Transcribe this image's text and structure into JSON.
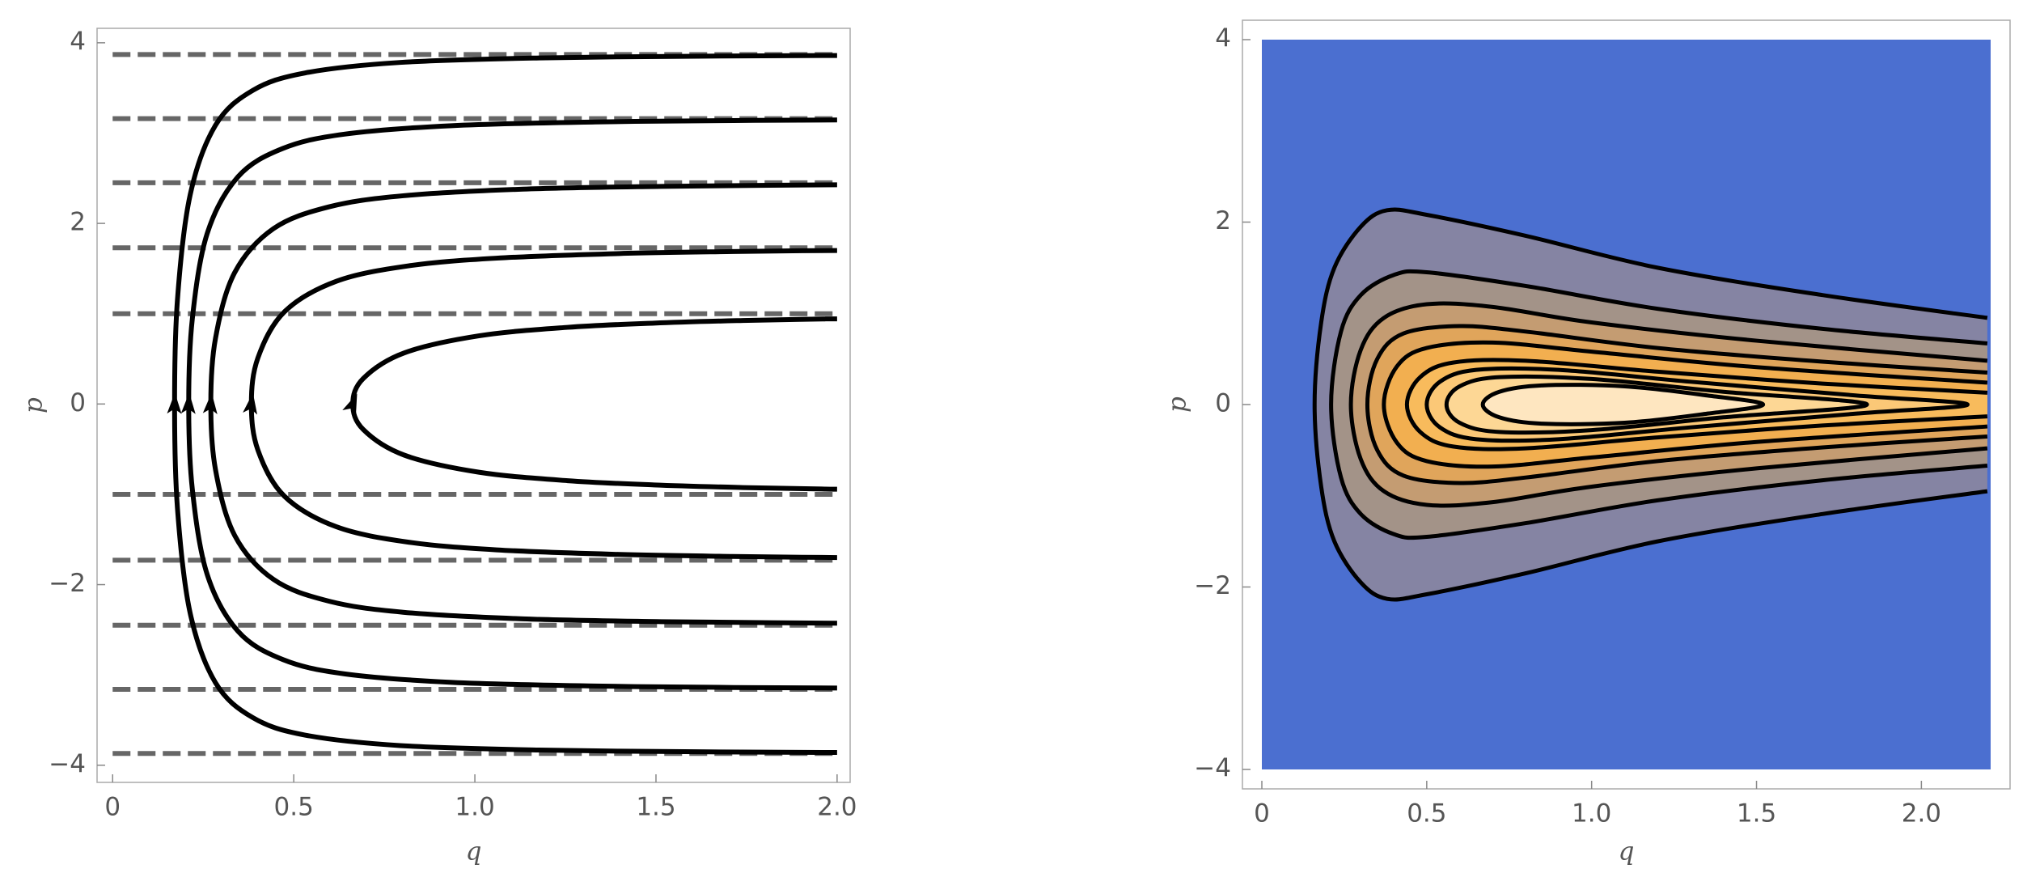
{
  "chart_data": [
    {
      "type": "line",
      "xlabel": "q",
      "ylabel": "p",
      "xlim": [
        -0.043,
        2.036
      ],
      "ylim": [
        -4.19,
        4.16
      ],
      "xticks": [
        0,
        0.5,
        {
          "value": 1,
          "label": "1.0"
        },
        1.5,
        {
          "value": 2,
          "label": "2.0"
        }
      ],
      "yticks": [
        {
          "value": -4,
          "label": "−4"
        },
        {
          "value": -2,
          "label": "−2"
        },
        0,
        2,
        4
      ],
      "asymptotes": {
        "color": "#666666",
        "values": [
          3.87,
          3.16,
          2.45,
          1.73,
          1.0,
          -1.0,
          -1.73,
          -2.45,
          -3.16,
          -3.87
        ]
      },
      "series": [
        {
          "color": "#000000",
          "x": [
            2.0,
            1.968,
            1.896,
            1.74,
            1.495,
            1.256,
            1.011,
            0.805,
            0.692,
            0.663,
            0.692,
            0.805,
            1.011,
            1.256,
            1.495,
            1.74,
            1.896,
            1.968,
            2.0
          ],
          "values": [
            -0.943,
            -0.942,
            -0.937,
            -0.925,
            -0.896,
            -0.849,
            -0.755,
            -0.566,
            -0.283,
            0,
            0.283,
            0.566,
            0.755,
            0.849,
            0.896,
            0.925,
            0.937,
            0.942,
            0.943
          ]
        },
        {
          "color": "#000000",
          "x": [
            2.0,
            1.903,
            1.711,
            1.4,
            1.06,
            0.817,
            0.618,
            0.474,
            0.401,
            0.383,
            0.401,
            0.474,
            0.618,
            0.817,
            1.06,
            1.4,
            1.711,
            1.903,
            2.0
          ],
          "values": [
            -1.7,
            -1.697,
            -1.688,
            -1.666,
            -1.615,
            -1.53,
            -1.36,
            -1.02,
            -0.51,
            0,
            0.51,
            1.02,
            1.36,
            1.53,
            1.615,
            1.666,
            1.688,
            1.697,
            1.7
          ]
        },
        {
          "color": "#000000",
          "x": [
            2.0,
            1.815,
            1.514,
            1.133,
            0.802,
            0.598,
            0.444,
            0.337,
            0.284,
            0.271,
            0.284,
            0.337,
            0.444,
            0.598,
            0.802,
            1.133,
            1.514,
            1.815,
            2.0
          ],
          "values": [
            -2.427,
            -2.422,
            -2.41,
            -2.379,
            -2.306,
            -2.184,
            -1.942,
            -1.456,
            -0.728,
            0,
            0.728,
            1.456,
            1.942,
            2.184,
            2.306,
            2.379,
            2.41,
            2.422,
            2.427
          ]
        },
        {
          "color": "#000000",
          "x": [
            2.0,
            1.714,
            1.332,
            0.936,
            0.64,
            0.47,
            0.346,
            0.261,
            0.22,
            0.21,
            0.22,
            0.261,
            0.346,
            0.47,
            0.64,
            0.936,
            1.332,
            1.714,
            2.0
          ],
          "values": [
            -3.145,
            -3.139,
            -3.123,
            -3.082,
            -2.988,
            -2.83,
            -2.516,
            -1.887,
            -0.943,
            0,
            0.943,
            1.887,
            2.516,
            2.83,
            2.988,
            3.082,
            3.123,
            3.139,
            3.145
          ]
        },
        {
          "color": "#000000",
          "x": [
            2.0,
            1.614,
            1.178,
            0.793,
            0.531,
            0.387,
            0.284,
            0.214,
            0.179,
            0.171,
            0.179,
            0.214,
            0.284,
            0.387,
            0.531,
            0.793,
            1.178,
            1.614,
            2.0
          ],
          "values": [
            -3.859,
            -3.851,
            -3.832,
            -3.782,
            -3.666,
            -3.473,
            -3.087,
            -2.315,
            -1.158,
            0,
            1.158,
            2.315,
            3.087,
            3.473,
            3.666,
            3.782,
            3.832,
            3.851,
            3.859
          ]
        }
      ]
    },
    {
      "type": "contour",
      "xlabel": "q",
      "ylabel": "p",
      "background": "#4b6fd0",
      "line_color": "#000000",
      "xlim": [
        0,
        2.21
      ],
      "ylim": [
        -4,
        4
      ],
      "xticks": [
        0,
        0.5,
        {
          "value": 1,
          "label": "1.0"
        },
        1.5,
        {
          "value": 2,
          "label": "2.0"
        }
      ],
      "yticks": [
        {
          "value": -4,
          "label": "−4"
        },
        {
          "value": -2,
          "label": "−2"
        },
        0,
        2,
        4
      ],
      "series": [
        {
          "color": "#8584a3",
          "closed": false,
          "x": [
            2.2,
            1.7,
            1.2,
            0.8,
            0.5,
            0.38,
            0.3,
            0.22,
            0.18,
            0.16,
            0.18,
            0.22,
            0.3,
            0.38,
            0.5,
            0.8,
            1.2,
            1.7,
            2.2
          ],
          "values": [
            -0.95,
            -1.2,
            -1.5,
            -1.85,
            -2.08,
            -2.13,
            -1.95,
            -1.5,
            -0.9,
            0,
            0.9,
            1.5,
            1.95,
            2.13,
            2.08,
            1.85,
            1.5,
            1.2,
            0.95
          ]
        },
        {
          "color": "#a39388",
          "closed": false,
          "x": [
            2.2,
            1.7,
            1.2,
            0.8,
            0.5,
            0.4,
            0.3,
            0.24,
            0.21,
            0.24,
            0.3,
            0.4,
            0.5,
            0.8,
            1.2,
            1.7,
            2.2
          ],
          "values": [
            -0.67,
            -0.83,
            -1.05,
            -1.3,
            -1.45,
            -1.42,
            -1.2,
            -0.8,
            0,
            0.8,
            1.2,
            1.42,
            1.45,
            1.3,
            1.05,
            0.83,
            0.67
          ]
        },
        {
          "color": "#c49c72",
          "closed": false,
          "x": [
            2.2,
            1.5,
            1.0,
            0.7,
            0.5,
            0.37,
            0.3,
            0.27,
            0.3,
            0.37,
            0.5,
            0.7,
            1.0,
            1.5,
            2.2
          ],
          "values": [
            -0.48,
            -0.7,
            -0.9,
            -1.07,
            -1.1,
            -0.95,
            -0.6,
            0,
            0.6,
            0.95,
            1.1,
            1.07,
            0.9,
            0.7,
            0.48
          ]
        },
        {
          "color": "#e0a55b",
          "closed": false,
          "x": [
            2.2,
            1.7,
            1.2,
            0.8,
            0.6,
            0.43,
            0.35,
            0.32,
            0.35,
            0.43,
            0.6,
            0.8,
            1.2,
            1.7,
            2.2
          ],
          "values": [
            -0.35,
            -0.47,
            -0.62,
            -0.8,
            -0.86,
            -0.78,
            -0.5,
            0,
            0.5,
            0.78,
            0.86,
            0.8,
            0.62,
            0.47,
            0.35
          ]
        },
        {
          "color": "#f2af50",
          "closed": false,
          "x": [
            2.2,
            1.5,
            1.0,
            0.7,
            0.5,
            0.41,
            0.37,
            0.41,
            0.5,
            0.7,
            1.0,
            1.5,
            2.2
          ],
          "values": [
            -0.24,
            -0.41,
            -0.58,
            -0.68,
            -0.62,
            -0.42,
            0,
            0.42,
            0.62,
            0.68,
            0.58,
            0.41,
            0.24
          ]
        },
        {
          "color": "#f8bb5c",
          "closed": false,
          "x": [
            2.2,
            1.7,
            1.2,
            0.8,
            0.58,
            0.48,
            0.44,
            0.48,
            0.58,
            0.8,
            1.2,
            1.7,
            2.2
          ],
          "values": [
            -0.13,
            -0.23,
            -0.36,
            -0.48,
            -0.46,
            -0.3,
            0,
            0.3,
            0.46,
            0.48,
            0.36,
            0.23,
            0.13
          ]
        },
        {
          "color": "#fbc877",
          "closed": true,
          "x": [
            2.14,
            1.8,
            1.3,
            0.9,
            0.65,
            0.54,
            0.5,
            0.54,
            0.65,
            0.9,
            1.3,
            1.8
          ],
          "values": [
            0,
            -0.1,
            -0.25,
            -0.38,
            -0.38,
            -0.25,
            0,
            0.25,
            0.38,
            0.38,
            0.25,
            0.1
          ]
        },
        {
          "color": "#fdd795",
          "closed": true,
          "x": [
            1.835,
            1.4,
            1.0,
            0.72,
            0.6,
            0.56,
            0.6,
            0.72,
            1.0,
            1.4
          ],
          "values": [
            0,
            -0.14,
            -0.28,
            -0.3,
            -0.2,
            0,
            0.2,
            0.3,
            0.28,
            0.14
          ]
        },
        {
          "color": "#fee6c0",
          "closed": true,
          "x": [
            1.52,
            1.35,
            1.1,
            0.85,
            0.72,
            0.67,
            0.72,
            0.85,
            1.1,
            1.35
          ],
          "values": [
            0,
            -0.1,
            -0.2,
            -0.21,
            -0.14,
            0,
            0.14,
            0.21,
            0.2,
            0.1
          ]
        }
      ]
    }
  ]
}
